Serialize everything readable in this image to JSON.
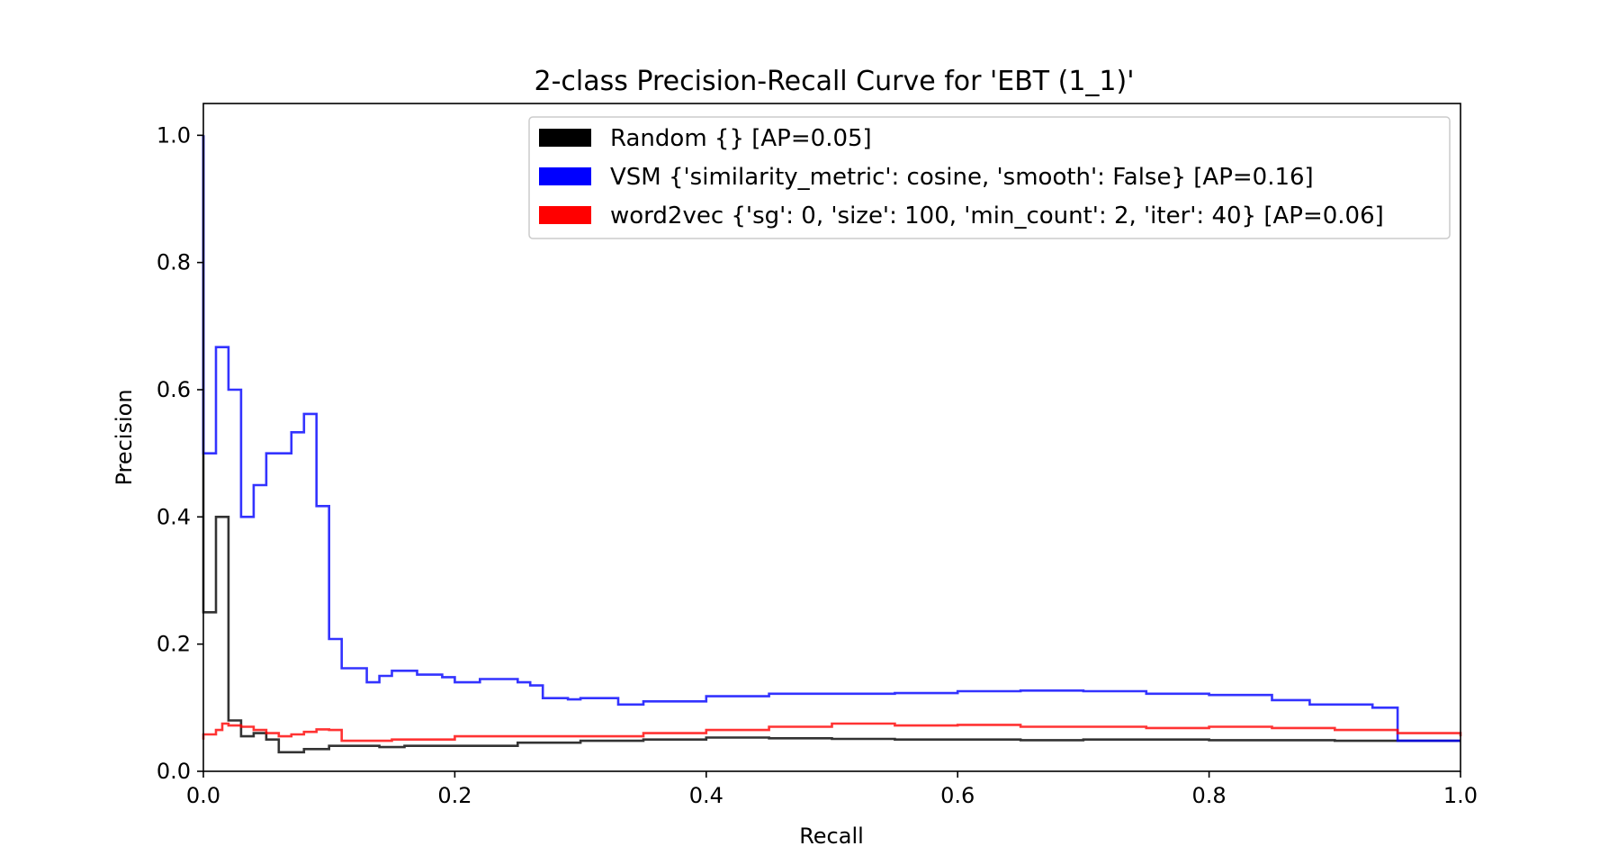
{
  "chart_data": {
    "type": "line",
    "step": true,
    "title": "2-class Precision-Recall Curve for 'EBT (1_1)'",
    "xlabel": "Recall",
    "ylabel": "Precision",
    "xlim": [
      0.0,
      1.0
    ],
    "ylim": [
      0.0,
      1.05
    ],
    "grid": false,
    "legend_position": "top-right",
    "x_ticks": [
      {
        "value": 0.0,
        "label": "0.0"
      },
      {
        "value": 0.2,
        "label": "0.2"
      },
      {
        "value": 0.4,
        "label": "0.4"
      },
      {
        "value": 0.6,
        "label": "0.6"
      },
      {
        "value": 0.8,
        "label": "0.8"
      },
      {
        "value": 1.0,
        "label": "1.0"
      }
    ],
    "y_ticks": [
      {
        "value": 0.0,
        "label": "0.0"
      },
      {
        "value": 0.2,
        "label": "0.2"
      },
      {
        "value": 0.4,
        "label": "0.4"
      },
      {
        "value": 0.6,
        "label": "0.6"
      },
      {
        "value": 0.8,
        "label": "0.8"
      },
      {
        "value": 1.0,
        "label": "1.0"
      }
    ],
    "series": [
      {
        "name": "Random {} [AP=0.05]",
        "color": "#000000",
        "x": [
          0.0,
          0.0,
          0.01,
          0.02,
          0.02,
          0.03,
          0.03,
          0.04,
          0.05,
          0.06,
          0.06,
          0.08,
          0.1,
          0.12,
          0.14,
          0.16,
          0.2,
          0.25,
          0.3,
          0.35,
          0.4,
          0.45,
          0.5,
          0.55,
          0.6,
          0.65,
          0.7,
          0.75,
          0.8,
          0.85,
          0.9,
          0.95,
          1.0
        ],
        "y": [
          1.0,
          0.25,
          0.4,
          0.4,
          0.08,
          0.08,
          0.055,
          0.06,
          0.05,
          0.05,
          0.03,
          0.035,
          0.04,
          0.04,
          0.038,
          0.04,
          0.04,
          0.045,
          0.048,
          0.05,
          0.053,
          0.052,
          0.051,
          0.05,
          0.05,
          0.049,
          0.05,
          0.05,
          0.049,
          0.049,
          0.048,
          0.048,
          0.048
        ]
      },
      {
        "name": "VSM {'similarity_metric': cosine, 'smooth': False} [AP=0.16]",
        "color": "#0000ff",
        "x": [
          0.0,
          0.0,
          0.01,
          0.02,
          0.02,
          0.03,
          0.03,
          0.04,
          0.05,
          0.06,
          0.07,
          0.08,
          0.09,
          0.09,
          0.1,
          0.1,
          0.11,
          0.11,
          0.13,
          0.14,
          0.15,
          0.17,
          0.19,
          0.2,
          0.22,
          0.25,
          0.26,
          0.27,
          0.29,
          0.3,
          0.32,
          0.33,
          0.35,
          0.4,
          0.45,
          0.5,
          0.55,
          0.6,
          0.65,
          0.7,
          0.75,
          0.8,
          0.85,
          0.88,
          0.93,
          0.95,
          0.95,
          1.0
        ],
        "y": [
          1.0,
          0.5,
          0.667,
          0.667,
          0.6,
          0.6,
          0.4,
          0.45,
          0.5,
          0.5,
          0.533,
          0.562,
          0.562,
          0.417,
          0.417,
          0.208,
          0.208,
          0.162,
          0.14,
          0.15,
          0.158,
          0.152,
          0.148,
          0.14,
          0.145,
          0.14,
          0.135,
          0.115,
          0.113,
          0.115,
          0.115,
          0.105,
          0.11,
          0.118,
          0.122,
          0.122,
          0.123,
          0.126,
          0.127,
          0.126,
          0.122,
          0.12,
          0.112,
          0.105,
          0.1,
          0.09,
          0.048,
          0.048
        ]
      },
      {
        "name": "word2vec {'sg': 0, 'size': 100, 'min_count': 2, 'iter': 40} [AP=0.06]",
        "color": "#ff0000",
        "x": [
          0.0,
          0.0,
          0.01,
          0.015,
          0.02,
          0.03,
          0.04,
          0.05,
          0.06,
          0.07,
          0.08,
          0.09,
          0.1,
          0.11,
          0.15,
          0.2,
          0.25,
          0.3,
          0.35,
          0.4,
          0.45,
          0.5,
          0.55,
          0.6,
          0.65,
          0.7,
          0.75,
          0.8,
          0.85,
          0.9,
          0.95,
          1.0
        ],
        "y": [
          0.05,
          0.058,
          0.065,
          0.075,
          0.072,
          0.07,
          0.065,
          0.06,
          0.055,
          0.058,
          0.062,
          0.066,
          0.065,
          0.048,
          0.05,
          0.055,
          0.055,
          0.055,
          0.06,
          0.065,
          0.07,
          0.075,
          0.072,
          0.073,
          0.07,
          0.07,
          0.068,
          0.07,
          0.068,
          0.065,
          0.06,
          0.055
        ]
      }
    ]
  }
}
